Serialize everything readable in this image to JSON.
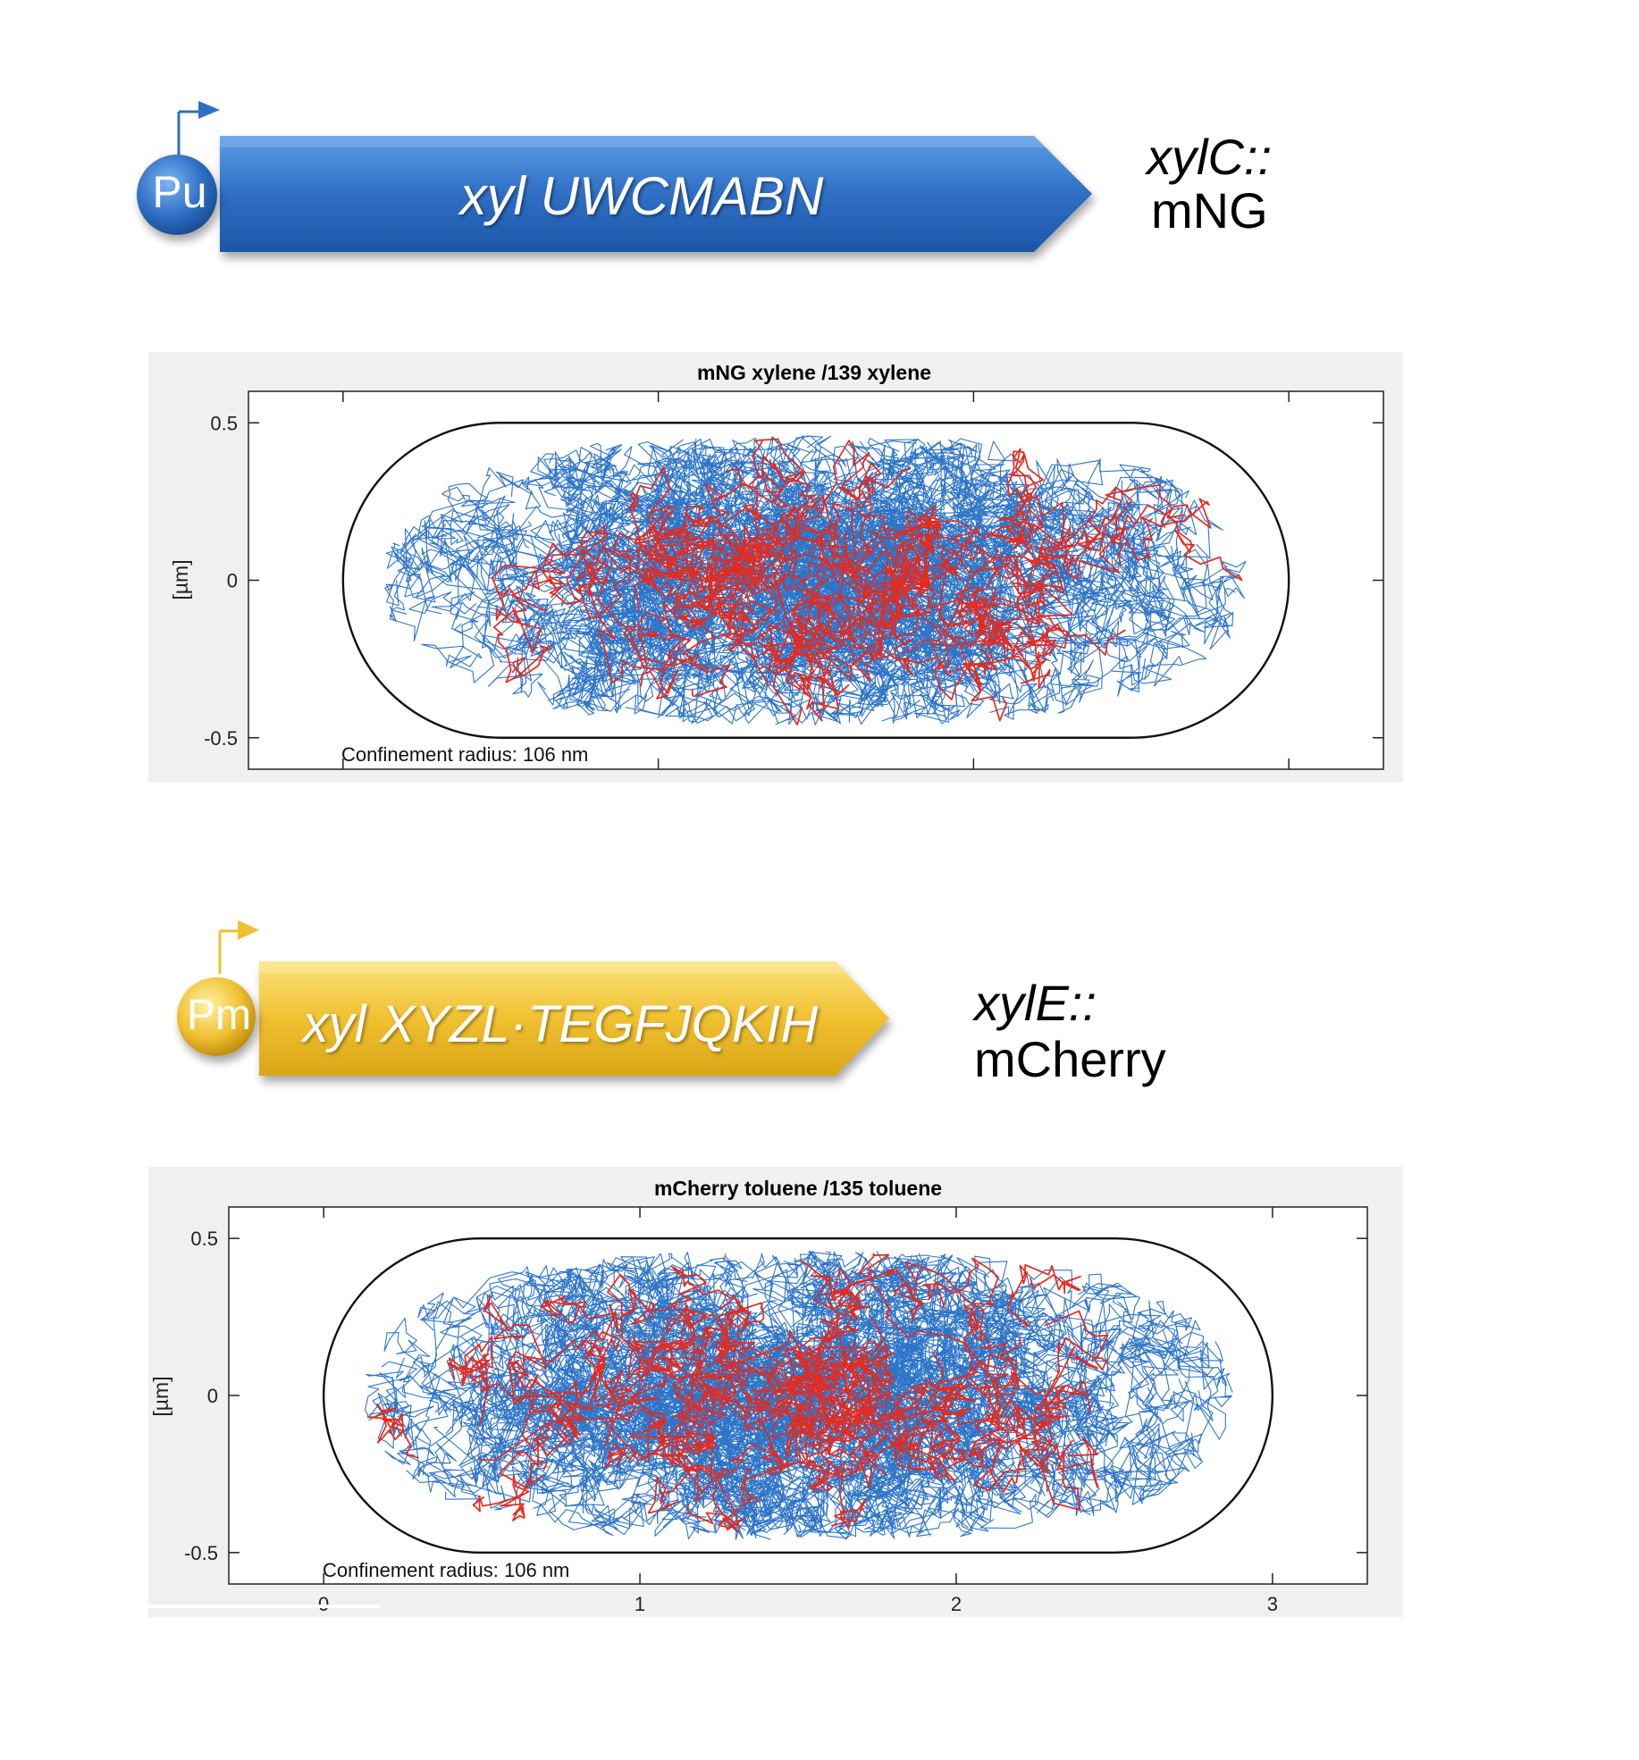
{
  "operon_top": {
    "promoter": "Pu",
    "gene_text": "xyl UWCMABN",
    "fusion_line1": "xylC::",
    "fusion_line2": "mNG",
    "color": "#2f6fc4"
  },
  "operon_bottom": {
    "promoter": "Pm",
    "gene_text": "xyl XYZL·TEGFJQKIH",
    "fusion_line1": "xylE::",
    "fusion_line2": "mCherry",
    "color": "#f0c030"
  },
  "colors": {
    "trajectory_all": "#2e75c8",
    "trajectory_highlight": "#e8291c",
    "outline": "#111111",
    "panel_bg": "#f0f0f0"
  },
  "chart_data": [
    {
      "type": "line",
      "title": "mNG xylene /139 xylene",
      "ylabel": "[µm]",
      "xlabel": "",
      "yticks": [
        0.5,
        0,
        -0.5
      ],
      "ytick_labels": [
        "0.5",
        "0",
        "-0.5"
      ],
      "xticks": [
        0,
        1,
        2,
        3
      ],
      "xtick_labels": [
        "",
        "",
        "",
        ""
      ],
      "xlim": [
        -0.3,
        3.3
      ],
      "ylim": [
        -0.6,
        0.6
      ],
      "annotation": "Confinement radius: 106 nm",
      "cell_outline": {
        "x_range": [
          0,
          3
        ],
        "y_range": [
          -0.5,
          0.5
        ]
      },
      "series": [
        {
          "values": [],
          "seed": 11
        },
        {
          "values": [],
          "seed": 23
        }
      ]
    },
    {
      "type": "line",
      "title": "mCherry toluene /135 toluene",
      "ylabel": "[µm]",
      "xlabel": "",
      "yticks": [
        0.5,
        0,
        -0.5
      ],
      "ytick_labels": [
        "0.5",
        "0",
        "-0.5"
      ],
      "xticks": [
        0,
        1,
        2,
        3
      ],
      "xtick_labels": [
        "0",
        "1",
        "2",
        "3"
      ],
      "xlim": [
        -0.3,
        3.3
      ],
      "ylim": [
        -0.6,
        0.6
      ],
      "annotation": "Confinement radius: 106 nm",
      "cell_outline": {
        "x_range": [
          0,
          3
        ],
        "y_range": [
          -0.5,
          0.5
        ]
      },
      "series": [
        {
          "values": [],
          "seed": 37
        },
        {
          "values": [],
          "seed": 53
        }
      ]
    }
  ]
}
